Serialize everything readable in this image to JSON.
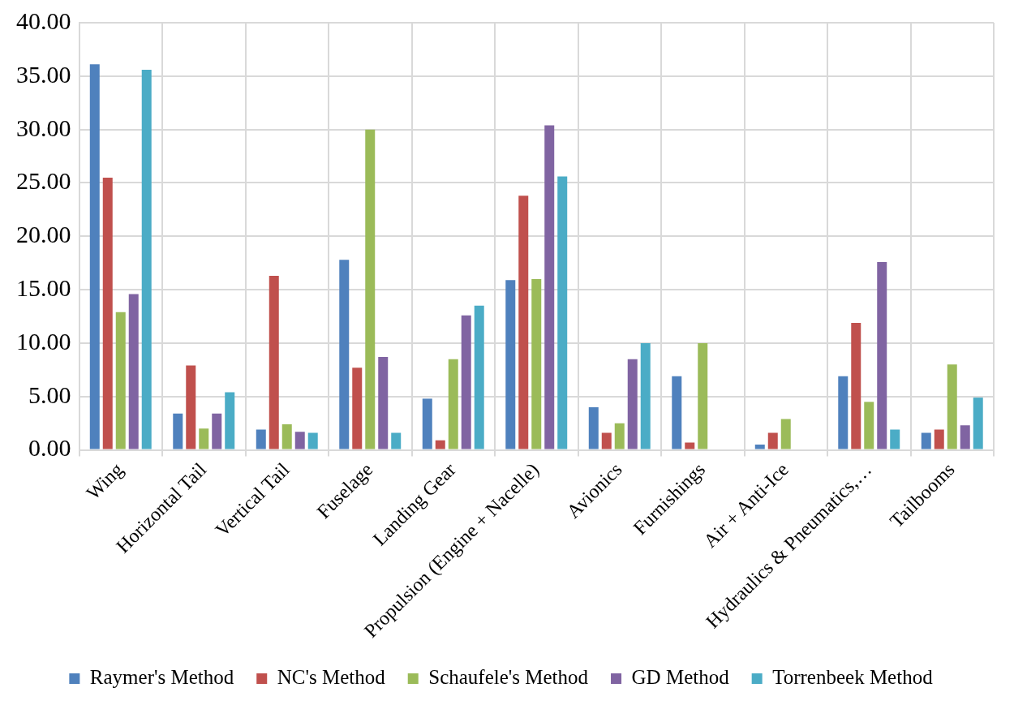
{
  "chart_data": {
    "type": "bar",
    "categories": [
      "Wing",
      "Horizontal Tail",
      "Vertical Tail",
      "Fuselage",
      "Landing Gear",
      "Propulsion (Engine + Nacelle)",
      "Avionics",
      "Furnishings",
      "Air + Anti-Ice",
      "Hydraulics & Pneumatics,…",
      "Tailbooms"
    ],
    "series": [
      {
        "name": "Raymer's Method",
        "color": "#4f81bd",
        "values": [
          36.1,
          3.4,
          1.9,
          17.8,
          4.8,
          15.9,
          4.0,
          6.9,
          0.5,
          6.9,
          1.6
        ]
      },
      {
        "name": "NC's Method",
        "color": "#c0504d",
        "values": [
          25.5,
          7.9,
          16.3,
          7.7,
          0.9,
          23.8,
          1.6,
          0.7,
          1.6,
          11.9,
          1.9
        ]
      },
      {
        "name": "Schaufele's Method",
        "color": "#9bbb59",
        "values": [
          12.9,
          2.0,
          2.4,
          30.0,
          8.5,
          16.0,
          2.5,
          10.0,
          2.9,
          4.5,
          8.0
        ]
      },
      {
        "name": "GD Method",
        "color": "#8064a2",
        "values": [
          14.6,
          3.4,
          1.7,
          8.7,
          12.6,
          30.4,
          8.5,
          null,
          null,
          17.6,
          2.3
        ]
      },
      {
        "name": "Torrenbeek Method",
        "color": "#4bacc6",
        "values": [
          35.6,
          5.4,
          1.6,
          1.6,
          13.5,
          25.6,
          10.0,
          null,
          null,
          1.9,
          4.9
        ]
      }
    ],
    "ylim": [
      0,
      40
    ],
    "yticks": [
      {
        "value": 0,
        "label": "0.00"
      },
      {
        "value": 5,
        "label": "5.00"
      },
      {
        "value": 10,
        "label": "10.00"
      },
      {
        "value": 15,
        "label": "15.00"
      },
      {
        "value": 20,
        "label": "20.00"
      },
      {
        "value": 25,
        "label": "25.00"
      },
      {
        "value": 30,
        "label": "30.00"
      },
      {
        "value": 35,
        "label": "35.00"
      },
      {
        "value": 40,
        "label": "40.00"
      }
    ],
    "grid": true,
    "legend": "bottom"
  }
}
